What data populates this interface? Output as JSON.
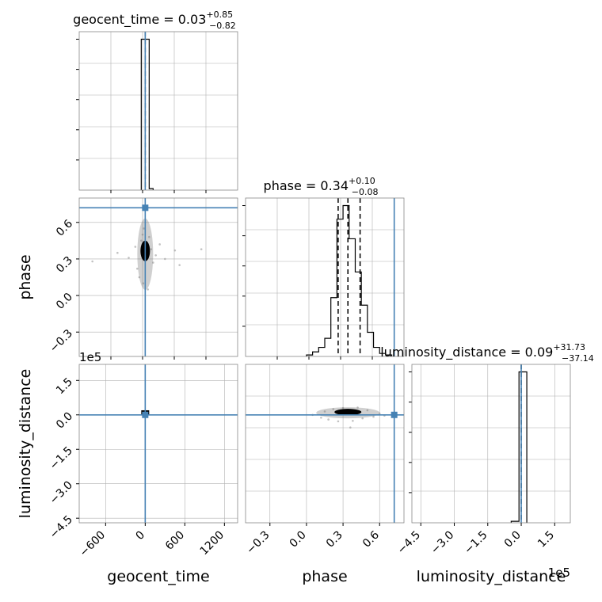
{
  "chart_data": [
    {
      "type": "histogram",
      "title": {
        "param": "geocent_time",
        "median": "0.03",
        "plus": "+0.85",
        "minus": "−0.82"
      },
      "x_range": [
        -1000,
        1400
      ],
      "bins": [
        {
          "x0": -60,
          "x1": 0,
          "count": 1.0
        },
        {
          "x0": 0,
          "x1": 60,
          "count": 1.0
        },
        {
          "x0": 60,
          "x1": 120,
          "count": 0.01
        }
      ],
      "y_max": 1.0,
      "quantile_lines": [
        0.03
      ],
      "truth": 0.03
    },
    {
      "type": "scatter",
      "x_param": "geocent_time",
      "y_param": "phase",
      "x_range": [
        -1000,
        1400
      ],
      "y_range": [
        -0.5,
        0.8
      ],
      "density_center": [
        0,
        0.34
      ],
      "scatter_points": [
        [
          -800,
          0.28
        ],
        [
          -420,
          0.35
        ],
        [
          -250,
          0.31
        ],
        [
          -150,
          0.4
        ],
        [
          -120,
          0.22
        ],
        [
          -90,
          0.15
        ],
        [
          -60,
          0.45
        ],
        [
          -40,
          0.5
        ],
        [
          -30,
          0.1
        ],
        [
          -20,
          0.55
        ],
        [
          40,
          0.05
        ],
        [
          60,
          0.48
        ],
        [
          90,
          0.38
        ],
        [
          120,
          0.27
        ],
        [
          160,
          0.33
        ],
        [
          220,
          0.42
        ],
        [
          300,
          0.3
        ],
        [
          450,
          0.37
        ],
        [
          520,
          0.25
        ],
        [
          850,
          0.38
        ]
      ],
      "truth": [
        0.03,
        0.72
      ],
      "y_ticks": [
        -0.3,
        0.0,
        0.3,
        0.6
      ],
      "y_tick_labels": [
        "−0.3",
        "0.0",
        "0.3",
        "0.6"
      ],
      "ylabel": "phase"
    },
    {
      "type": "histogram",
      "title": {
        "param": "phase",
        "median": "0.34",
        "plus": "+0.10",
        "minus": "−0.08"
      },
      "x_range": [
        -0.5,
        0.8
      ],
      "bins": [
        {
          "x0": 0.0,
          "x1": 0.05,
          "count": 0.01
        },
        {
          "x0": 0.05,
          "x1": 0.1,
          "count": 0.03
        },
        {
          "x0": 0.1,
          "x1": 0.15,
          "count": 0.06
        },
        {
          "x0": 0.15,
          "x1": 0.2,
          "count": 0.12
        },
        {
          "x0": 0.2,
          "x1": 0.25,
          "count": 0.39
        },
        {
          "x0": 0.25,
          "x1": 0.3,
          "count": 0.91
        },
        {
          "x0": 0.3,
          "x1": 0.35,
          "count": 1.0
        },
        {
          "x0": 0.35,
          "x1": 0.4,
          "count": 0.78
        },
        {
          "x0": 0.4,
          "x1": 0.45,
          "count": 0.56
        },
        {
          "x0": 0.45,
          "x1": 0.5,
          "count": 0.34
        },
        {
          "x0": 0.5,
          "x1": 0.55,
          "count": 0.16
        },
        {
          "x0": 0.55,
          "x1": 0.6,
          "count": 0.06
        },
        {
          "x0": 0.6,
          "x1": 0.65,
          "count": 0.02
        },
        {
          "x0": 0.65,
          "x1": 0.7,
          "count": 0.01
        }
      ],
      "y_max": 1.0,
      "quantile_lines": [
        0.26,
        0.34,
        0.44
      ],
      "truth": 0.72
    },
    {
      "type": "scatter",
      "x_param": "geocent_time",
      "y_param": "luminosity_distance",
      "x_range": [
        -1000,
        1400
      ],
      "y_range": [
        -470000,
        220000
      ],
      "density_center": [
        0,
        9000
      ],
      "density_box": [
        -60,
        60,
        0,
        20000
      ],
      "scatter_points": [],
      "truth": [
        0.03,
        0
      ],
      "x_ticks": [
        -600,
        0,
        600,
        1200
      ],
      "x_tick_labels": [
        "−600",
        "0",
        "600",
        "1200"
      ],
      "y_ticks": [
        -450000,
        -300000,
        -150000,
        0,
        150000
      ],
      "y_tick_labels": [
        "−4.5",
        "−3.0",
        "−1.5",
        "0.0",
        "1.5"
      ],
      "y_offset_label": "1e5",
      "xlabel": "geocent_time",
      "ylabel": "luminosity_distance"
    },
    {
      "type": "scatter",
      "x_param": "phase",
      "y_param": "luminosity_distance",
      "x_range": [
        -0.5,
        0.8
      ],
      "y_range": [
        -470000,
        220000
      ],
      "density_center": [
        0.34,
        9000
      ],
      "scatter_points": [
        [
          0.05,
          0
        ],
        [
          0.12,
          -12000
        ],
        [
          0.15,
          15000
        ],
        [
          0.18,
          -20000
        ],
        [
          0.22,
          25000
        ],
        [
          0.26,
          -28000
        ],
        [
          0.3,
          30000
        ],
        [
          0.38,
          -26000
        ],
        [
          0.42,
          32000
        ],
        [
          0.46,
          -15000
        ],
        [
          0.5,
          20000
        ],
        [
          0.55,
          -8000
        ],
        [
          0.6,
          6000
        ],
        [
          0.64,
          -3000
        ],
        [
          0.36,
          -55000
        ]
      ],
      "truth": [
        0.72,
        0
      ],
      "x_ticks": [
        -0.3,
        0.0,
        0.3,
        0.6
      ],
      "x_tick_labels": [
        "−0.3",
        "0.0",
        "0.3",
        "0.6"
      ],
      "xlabel": "phase"
    },
    {
      "type": "histogram",
      "title": {
        "param": "luminosity_distance",
        "median": "0.09",
        "plus": "+31.73",
        "minus": "−37.14"
      },
      "x_range": [
        -490000,
        220000
      ],
      "bins": [
        {
          "x0": -45000,
          "x1": -10000,
          "count": 0.01
        },
        {
          "x0": -10000,
          "x1": 0,
          "count": 1.0
        },
        {
          "x0": 0,
          "x1": 25000,
          "count": 1.0
        }
      ],
      "y_max": 1.0,
      "quantile_lines": [
        0
      ],
      "truth": 0,
      "x_ticks": [
        -450000,
        -300000,
        -150000,
        0,
        150000
      ],
      "x_tick_labels": [
        "−4.5",
        "−3.0",
        "−1.5",
        "0.0",
        "1.5"
      ],
      "x_offset_label": "1e5",
      "xlabel": "luminosity_distance"
    }
  ],
  "colors": {
    "truth": "#4682b4",
    "grid": "#b0b0b0",
    "hist": "#000000",
    "points": "#9a9a9a"
  }
}
